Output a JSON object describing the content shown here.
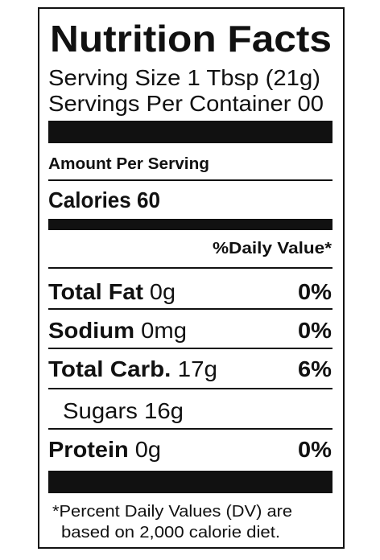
{
  "title": "Nutrition Facts",
  "serving": {
    "size": "Serving Size 1 Tbsp (21g)",
    "per_container": "Servings Per Container 00"
  },
  "amount_per_serving": "Amount Per Serving",
  "calories": {
    "label": "Calories",
    "value": "60"
  },
  "daily_value_header": "%Daily Value*",
  "nutrients": [
    {
      "name": "Total Fat",
      "amount": "0g",
      "dv": "0%"
    },
    {
      "name": "Sodium",
      "amount": "0mg",
      "dv": "0%"
    },
    {
      "name": "Total Carb.",
      "amount": "17g",
      "dv": "6%"
    },
    {
      "name": "Sugars",
      "amount": "16g"
    },
    {
      "name": "Protein",
      "amount": "0g",
      "dv": "0%"
    }
  ],
  "footnote": [
    "*Percent Daily Values (DV) are",
    "based on 2,000 calorie diet."
  ]
}
